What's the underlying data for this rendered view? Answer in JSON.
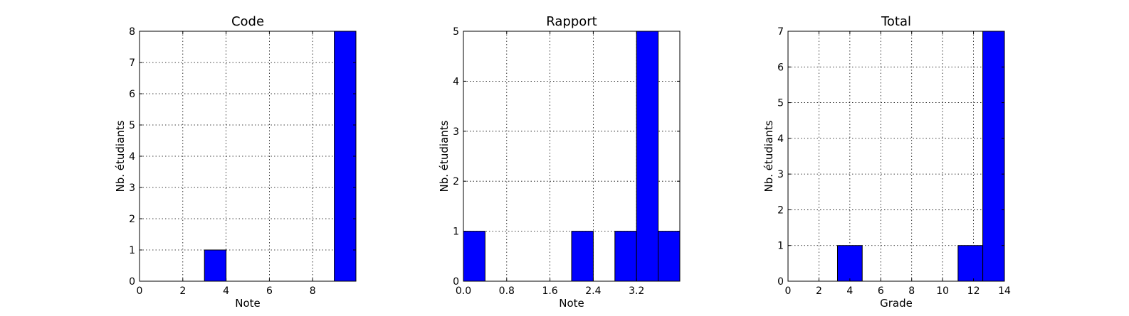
{
  "chart_data": [
    {
      "type": "bar",
      "title": "Code",
      "xlabel": "Note",
      "ylabel": "Nb. étudiants",
      "xlim": [
        0,
        10
      ],
      "ylim": [
        0,
        8
      ],
      "xticks": [
        "0",
        "2",
        "4",
        "6",
        "8"
      ],
      "xtick_values": [
        0,
        2,
        4,
        6,
        8
      ],
      "yticks": [
        "0",
        "1",
        "2",
        "3",
        "4",
        "5",
        "6",
        "7",
        "8"
      ],
      "ytick_values": [
        0,
        1,
        2,
        3,
        4,
        5,
        6,
        7,
        8
      ],
      "bins": [
        {
          "x0": 3.0,
          "x1": 4.0,
          "value": 1
        },
        {
          "x0": 9.0,
          "x1": 10.0,
          "value": 8
        }
      ],
      "grid": true,
      "bar_color": "#0000ff"
    },
    {
      "type": "bar",
      "title": "Rapport",
      "xlabel": "Note",
      "ylabel": "Nb. étudiants",
      "xlim": [
        0,
        4
      ],
      "ylim": [
        0,
        5
      ],
      "xticks": [
        "0.0",
        "0.8",
        "1.6",
        "2.4",
        "3.2"
      ],
      "xtick_values": [
        0,
        0.8,
        1.6,
        2.4,
        3.2
      ],
      "yticks": [
        "0",
        "1",
        "2",
        "3",
        "4",
        "5"
      ],
      "ytick_values": [
        0,
        1,
        2,
        3,
        4,
        5
      ],
      "bins": [
        {
          "x0": 0.0,
          "x1": 0.4,
          "value": 1
        },
        {
          "x0": 2.0,
          "x1": 2.4,
          "value": 1
        },
        {
          "x0": 2.8,
          "x1": 3.2,
          "value": 1
        },
        {
          "x0": 3.2,
          "x1": 3.6,
          "value": 5
        },
        {
          "x0": 3.6,
          "x1": 4.0,
          "value": 1
        }
      ],
      "grid": true,
      "bar_color": "#0000ff"
    },
    {
      "type": "bar",
      "title": "Total",
      "xlabel": "Grade",
      "ylabel": "Nb. étudiants",
      "xlim": [
        0,
        14
      ],
      "ylim": [
        0,
        7
      ],
      "xticks": [
        "0",
        "2",
        "4",
        "6",
        "8",
        "10",
        "12",
        "14"
      ],
      "xtick_values": [
        0,
        2,
        4,
        6,
        8,
        10,
        12,
        14
      ],
      "yticks": [
        "0",
        "1",
        "2",
        "3",
        "4",
        "5",
        "6",
        "7"
      ],
      "ytick_values": [
        0,
        1,
        2,
        3,
        4,
        5,
        6,
        7
      ],
      "bins": [
        {
          "x0": 3.2,
          "x1": 4.8,
          "value": 1
        },
        {
          "x0": 11.0,
          "x1": 12.6,
          "value": 1
        },
        {
          "x0": 12.6,
          "x1": 14.0,
          "value": 7
        }
      ],
      "grid": true,
      "bar_color": "#0000ff"
    }
  ]
}
